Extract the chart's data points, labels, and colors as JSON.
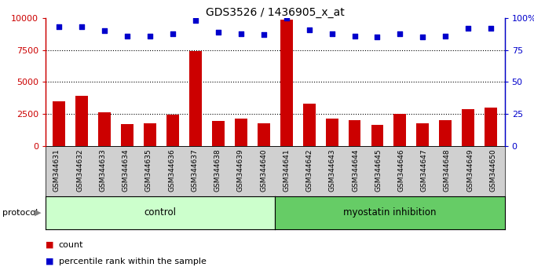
{
  "title": "GDS3526 / 1436905_x_at",
  "categories": [
    "GSM344631",
    "GSM344632",
    "GSM344633",
    "GSM344634",
    "GSM344635",
    "GSM344636",
    "GSM344637",
    "GSM344638",
    "GSM344639",
    "GSM344640",
    "GSM344641",
    "GSM344642",
    "GSM344643",
    "GSM344644",
    "GSM344645",
    "GSM344646",
    "GSM344647",
    "GSM344648",
    "GSM344649",
    "GSM344650"
  ],
  "bar_values": [
    3500,
    3900,
    2650,
    1700,
    1750,
    2450,
    7400,
    1950,
    2150,
    1750,
    9900,
    3300,
    2150,
    2000,
    1650,
    2500,
    1750,
    2000,
    2900,
    3000
  ],
  "percentile_values": [
    93,
    93,
    90,
    86,
    86,
    88,
    98,
    89,
    88,
    87,
    100,
    91,
    88,
    86,
    85,
    88,
    85,
    86,
    92,
    92
  ],
  "bar_color": "#cc0000",
  "dot_color": "#0000cc",
  "ylim_left": [
    0,
    10000
  ],
  "ylim_right": [
    0,
    100
  ],
  "yticks_left": [
    0,
    2500,
    5000,
    7500,
    10000
  ],
  "yticks_right": [
    0,
    25,
    50,
    75,
    100
  ],
  "ytick_labels_right": [
    "0",
    "25",
    "50",
    "75",
    "100%"
  ],
  "grid_values": [
    2500,
    5000,
    7500
  ],
  "legend_count_label": "count",
  "legend_pct_label": "percentile rank within the sample",
  "protocol_label": "protocol",
  "control_label": "control",
  "myostatin_label": "myostatin inhibition",
  "xtick_bg": "#d0d0d0",
  "control_bg": "#ccffcc",
  "myostatin_bg": "#66cc66",
  "plot_bg": "#ffffff",
  "n_control": 10,
  "n_total": 20
}
